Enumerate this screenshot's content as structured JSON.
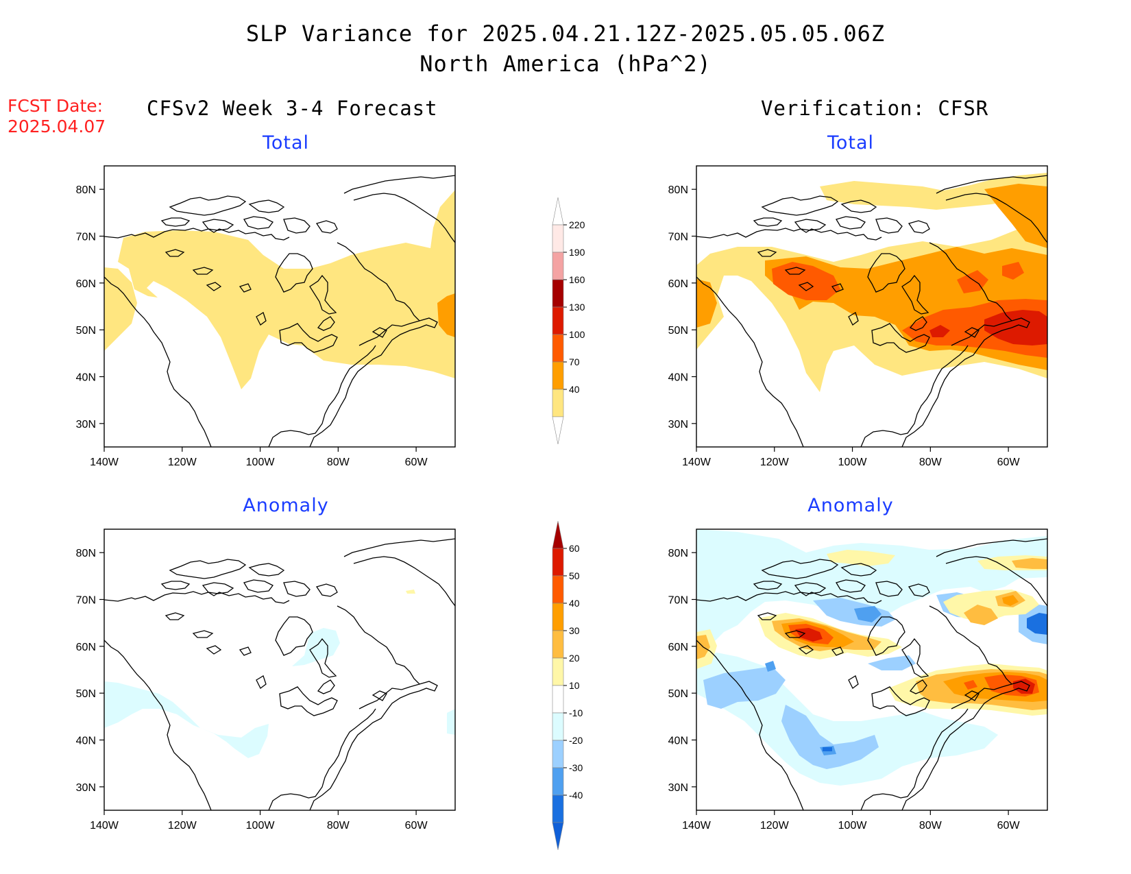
{
  "title": {
    "line1": "SLP Variance for 2025.04.21.12Z-2025.05.05.06Z",
    "line2": "North America (hPa^2)"
  },
  "fcst_date": {
    "label": "FCST Date:",
    "value": "2025.04.07"
  },
  "columns": {
    "left": "CFSv2 Week 3-4 Forecast",
    "right": "Verification: CFSR"
  },
  "panels": {
    "fcst_total": "Total",
    "fcst_anomaly": "Anomaly",
    "verif_total": "Total",
    "verif_anomaly": "Anomaly"
  },
  "axes": {
    "lat_labels": [
      "80N",
      "70N",
      "60N",
      "50N",
      "40N",
      "30N"
    ],
    "lon_labels": [
      "140W",
      "120W",
      "100W",
      "80W",
      "60W"
    ],
    "lat_range": [
      25,
      85
    ],
    "lon_range": [
      -140,
      -50
    ]
  },
  "colorbar_total": {
    "labels": [
      "220",
      "190",
      "160",
      "130",
      "100",
      "70",
      "40"
    ],
    "colors": [
      "#ffe9e6",
      "#f4a3a3",
      "#a50000",
      "#dd1a00",
      "#ff5a00",
      "#ff9e00",
      "#ffe680"
    ]
  },
  "colorbar_anomaly": {
    "labels": [
      "60",
      "50",
      "40",
      "30",
      "20",
      "10",
      "-10",
      "-20",
      "-30",
      "-40"
    ],
    "colors": [
      "#a50000",
      "#dd1a00",
      "#ff5a00",
      "#ff9e00",
      "#ffbd40",
      "#fff7a8",
      "#ffffff",
      "#dcfcff",
      "#9cd0ff",
      "#4fa0f0",
      "#1a70e0",
      "#1060d8"
    ]
  },
  "chart_data": {
    "type": "heatmap",
    "title": "SLP Variance for 2025.04.21.12Z-2025.05.05.06Z",
    "subtitle": "North America (hPa^2)",
    "panels": [
      {
        "name": "CFSv2 Week 3-4 Forecast Total",
        "scale": "total",
        "features": [
          {
            "desc": "40-70 band across Canada and northern US",
            "value": "40-70"
          },
          {
            "desc": "70-100 near Newfoundland / 50N 50W",
            "value": "70-100"
          },
          {
            "desc": "40-70 off Pacific coast 45-60N",
            "value": "40-70"
          }
        ]
      },
      {
        "name": "Verification CFSR Total",
        "scale": "total",
        "features": [
          {
            "desc": "70-100 broad area central Canada",
            "value": "70-100"
          },
          {
            "desc": "100-130 near 60N 110W",
            "value": "100-130"
          },
          {
            "desc": "100-130 near 48N 70W-55W",
            "value": "100-130"
          },
          {
            "desc": "130-160 near 48N 55W",
            "value": "130-160"
          },
          {
            "desc": "40-70 Arctic and Pacific coast",
            "value": "40-70"
          }
        ]
      },
      {
        "name": "CFSv2 Week 3-4 Forecast Anomaly",
        "scale": "anomaly",
        "features": [
          {
            "desc": "-10 to -20 weak negatives Pacific coast and western US",
            "value": "-20 to -10"
          },
          {
            "desc": "-10 to -20 near Hudson Bay",
            "value": "-20 to -10"
          }
        ]
      },
      {
        "name": "Verification CFSR Anomaly",
        "scale": "anomaly",
        "features": [
          {
            "desc": "40-60 maximum near 60N 108W",
            "value": "40 to 60"
          },
          {
            "desc": "30-60 near 48N 55W",
            "value": "30 to 60"
          },
          {
            "desc": "-20 to -30 near 70N 100W and 70N 75W",
            "value": "-30 to -20"
          },
          {
            "desc": "-20 to -30 over western US 30-45N",
            "value": "-30 to -20"
          },
          {
            "desc": "-30 to -40 near 55N 50W",
            "value": "-40 to -30"
          },
          {
            "desc": "20-40 near 60N 60W",
            "value": "20 to 40"
          }
        ]
      }
    ]
  }
}
